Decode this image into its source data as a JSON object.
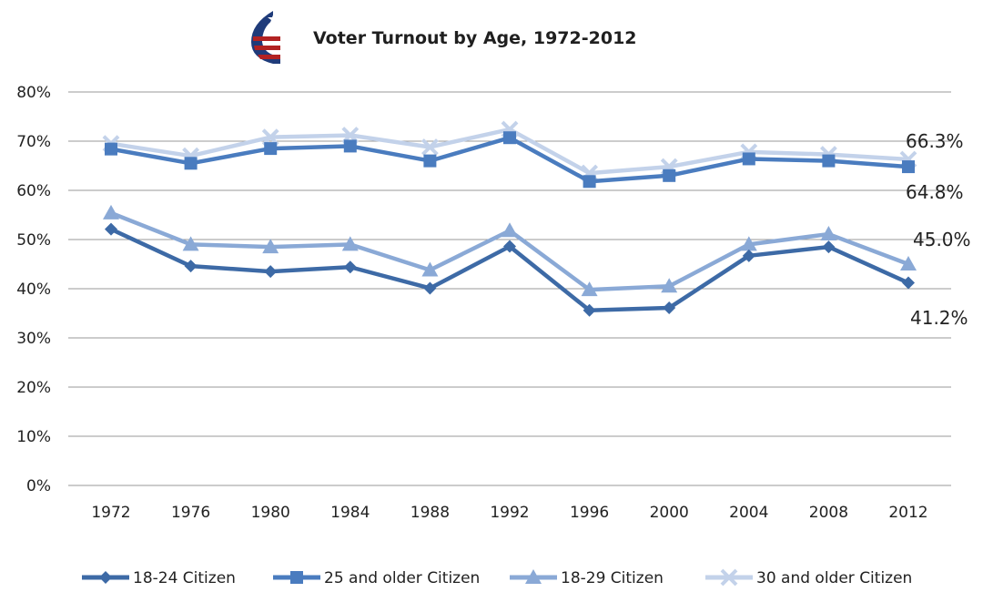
{
  "chart_data": {
    "type": "line",
    "title": "Voter Turnout by Age, 1972-2012",
    "xlabel": "",
    "ylabel": "",
    "ylim": [
      0,
      80
    ],
    "y_ticks": [
      "0%",
      "10%",
      "20%",
      "30%",
      "40%",
      "50%",
      "60%",
      "70%",
      "80%"
    ],
    "grid": "horizontal",
    "legend_position": "bottom",
    "categories": [
      "1972",
      "1976",
      "1980",
      "1984",
      "1988",
      "1992",
      "1996",
      "2000",
      "2004",
      "2008",
      "2012"
    ],
    "series": [
      {
        "name": "18-24 Citizen",
        "color": "#3d6aa6",
        "marker": "diamond",
        "values": [
          52.1,
          44.6,
          43.5,
          44.4,
          40.1,
          48.6,
          35.6,
          36.1,
          46.7,
          48.5,
          41.2
        ],
        "end_label": "41.2%"
      },
      {
        "name": "25 and older Citizen",
        "color": "#4a7cbf",
        "marker": "square",
        "values": [
          68.4,
          65.5,
          68.5,
          69.0,
          66.0,
          70.7,
          61.8,
          63.0,
          66.4,
          66.0,
          64.8
        ],
        "end_label": "64.8%"
      },
      {
        "name": "18-29 Citizen",
        "color": "#8aa9d6",
        "marker": "triangle",
        "values": [
          55.4,
          49.0,
          48.5,
          49.0,
          43.8,
          51.8,
          39.8,
          40.5,
          49.0,
          51.1,
          45.0
        ],
        "end_label": "45.0%"
      },
      {
        "name": "30 and older Citizen",
        "color": "#c3d2ea",
        "marker": "x",
        "values": [
          69.5,
          67.0,
          70.8,
          71.2,
          68.8,
          72.4,
          63.5,
          64.8,
          67.8,
          67.3,
          66.3
        ],
        "end_label": "66.3%"
      }
    ]
  },
  "logo": {
    "name": "flag-logo-icon",
    "colors": {
      "blue": "#1f3b7a",
      "red": "#b22222"
    }
  }
}
